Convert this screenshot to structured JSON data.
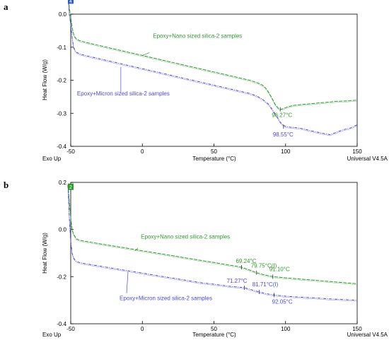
{
  "chart_data": [
    {
      "panel": "a",
      "type": "line",
      "xlabel": "Temperature (°C)",
      "ylabel": "Heat Flow (W/g)",
      "xlim": [
        -50,
        150
      ],
      "ylim": [
        -0.4,
        0.0
      ],
      "xticks": [
        "-50",
        "0",
        "50",
        "100",
        "150"
      ],
      "yticks": [
        "0.0",
        "-0.1",
        "-0.2",
        "-0.3",
        "-0.4"
      ],
      "bottom_left_label": "Exo Up",
      "bottom_right_label": "Universal V4.5A",
      "marker_tag": "4",
      "grid": false,
      "colors": {
        "nano": "#2e9a2e",
        "micron": "#4a4ae0",
        "marker_tag": "#2a5bd0"
      },
      "series": [
        {
          "name": "Epoxy+Nano sized silica-2 samples",
          "color": "#2e9a2e",
          "x": [
            -52,
            -51,
            -50,
            -49,
            -48,
            -47,
            -46,
            -44,
            -40,
            -30,
            -20,
            -10,
            0,
            10,
            20,
            30,
            40,
            50,
            60,
            70,
            75,
            80,
            84,
            87,
            90,
            93,
            95,
            97,
            100,
            103,
            106,
            110,
            115,
            120,
            125,
            130,
            135,
            140,
            145,
            150
          ],
          "y": [
            0.07,
            0.02,
            -0.01,
            -0.04,
            -0.06,
            -0.07,
            -0.075,
            -0.08,
            -0.085,
            -0.095,
            -0.105,
            -0.115,
            -0.125,
            -0.135,
            -0.145,
            -0.155,
            -0.165,
            -0.175,
            -0.185,
            -0.195,
            -0.2,
            -0.207,
            -0.215,
            -0.228,
            -0.25,
            -0.275,
            -0.285,
            -0.288,
            -0.283,
            -0.279,
            -0.276,
            -0.274,
            -0.272,
            -0.27,
            -0.268,
            -0.266,
            -0.264,
            -0.263,
            -0.262,
            -0.26
          ]
        },
        {
          "name": "Epoxy+Micron sized silica-2 samples",
          "color": "#4a4ae0",
          "x": [
            -52,
            -51,
            -50,
            -49,
            -48,
            -47,
            -46,
            -44,
            -40,
            -30,
            -20,
            -10,
            0,
            10,
            20,
            30,
            40,
            50,
            60,
            70,
            75,
            80,
            84,
            88,
            91,
            94,
            96,
            98,
            100,
            103,
            106,
            110,
            115,
            120,
            125,
            128,
            131,
            134,
            137,
            140,
            145,
            150
          ],
          "y": [
            0.07,
            0.0,
            -0.03,
            -0.07,
            -0.1,
            -0.11,
            -0.115,
            -0.12,
            -0.125,
            -0.135,
            -0.145,
            -0.155,
            -0.165,
            -0.175,
            -0.185,
            -0.195,
            -0.205,
            -0.215,
            -0.225,
            -0.235,
            -0.24,
            -0.248,
            -0.258,
            -0.272,
            -0.29,
            -0.31,
            -0.325,
            -0.335,
            -0.34,
            -0.342,
            -0.343,
            -0.345,
            -0.35,
            -0.355,
            -0.36,
            -0.362,
            -0.365,
            -0.36,
            -0.355,
            -0.35,
            -0.345,
            -0.335
          ]
        }
      ],
      "annotations": [
        {
          "text": "Epoxy+Nano sized silica-2 samples",
          "series": 0,
          "x": 0,
          "y": -0.125
        },
        {
          "text": "Epoxy+Micron sized silica-2 samples",
          "series": 1,
          "x": -15,
          "y": -0.16
        },
        {
          "text": "96.27°C",
          "series": 0,
          "x": 96.27,
          "y": -0.288
        },
        {
          "text": "98.55°C",
          "series": 1,
          "x": 98.55,
          "y": -0.34
        }
      ]
    },
    {
      "panel": "b",
      "type": "line",
      "xlabel": "Temperature (°C)",
      "ylabel": "Heat Flow (W/g)",
      "xlim": [
        -50,
        150
      ],
      "ylim": [
        -0.4,
        0.2
      ],
      "xticks": [
        "-50",
        "0",
        "50",
        "100",
        "150"
      ],
      "yticks": [
        "0.2",
        "0.0",
        "-0.2",
        "-0.4"
      ],
      "bottom_left_label": "Exo Up",
      "bottom_right_label": "Universal V4.5A",
      "marker_tag": "2",
      "grid": false,
      "colors": {
        "nano": "#2e9a2e",
        "micron": "#4a4ae0",
        "marker_tag": "#2e9a2e"
      },
      "series": [
        {
          "name": "Epoxy+Nano sized silica-2 samples",
          "color": "#2e9a2e",
          "x": [
            -52,
            -51,
            -50,
            -49,
            -48,
            -47,
            -46,
            -44,
            -40,
            -30,
            -20,
            -10,
            0,
            10,
            20,
            30,
            40,
            50,
            60,
            65,
            69.24,
            75,
            79.75,
            85,
            91.1,
            100,
            110,
            120,
            130,
            140,
            150
          ],
          "y": [
            0.19,
            0.12,
            0.05,
            0.0,
            -0.02,
            -0.03,
            -0.04,
            -0.045,
            -0.05,
            -0.06,
            -0.07,
            -0.08,
            -0.09,
            -0.1,
            -0.11,
            -0.12,
            -0.13,
            -0.14,
            -0.15,
            -0.155,
            -0.16,
            -0.172,
            -0.183,
            -0.192,
            -0.2,
            -0.205,
            -0.21,
            -0.215,
            -0.22,
            -0.225,
            -0.23
          ]
        },
        {
          "name": "Epoxy+Micron sized silica-2 samples",
          "color": "#4a4ae0",
          "x": [
            -52,
            -51,
            -50,
            -49,
            -48,
            -47,
            -46,
            -44,
            -40,
            -30,
            -20,
            -10,
            0,
            10,
            20,
            30,
            40,
            50,
            60,
            65,
            71.27,
            76,
            81.71,
            86,
            92.05,
            100,
            110,
            120,
            130,
            140,
            150
          ],
          "y": [
            0.19,
            0.05,
            -0.05,
            -0.1,
            -0.12,
            -0.13,
            -0.135,
            -0.14,
            -0.145,
            -0.155,
            -0.165,
            -0.175,
            -0.185,
            -0.195,
            -0.205,
            -0.215,
            -0.225,
            -0.232,
            -0.24,
            -0.243,
            -0.247,
            -0.255,
            -0.265,
            -0.272,
            -0.278,
            -0.283,
            -0.287,
            -0.29,
            -0.294,
            -0.297,
            -0.3
          ]
        }
      ],
      "annotations": [
        {
          "text": "Epoxy+Nano sized silica-2 samples",
          "series": 0,
          "x": -5,
          "y": -0.09
        },
        {
          "text": "Epoxy+Micron sized silica-2 samples",
          "series": 1,
          "x": -10,
          "y": -0.18
        },
        {
          "text": "69.24°C",
          "series": 0,
          "x": 69.24,
          "y": -0.16
        },
        {
          "text": "79.75°C(I)",
          "series": 0,
          "x": 79.75,
          "y": -0.183
        },
        {
          "text": "91.10°C",
          "series": 0,
          "x": 91.1,
          "y": -0.2
        },
        {
          "text": "71.27°C",
          "series": 1,
          "x": 71.27,
          "y": -0.247
        },
        {
          "text": "81.71°C(I)",
          "series": 1,
          "x": 81.71,
          "y": -0.265
        },
        {
          "text": "92.05°C",
          "series": 1,
          "x": 92.05,
          "y": -0.278
        }
      ]
    }
  ]
}
